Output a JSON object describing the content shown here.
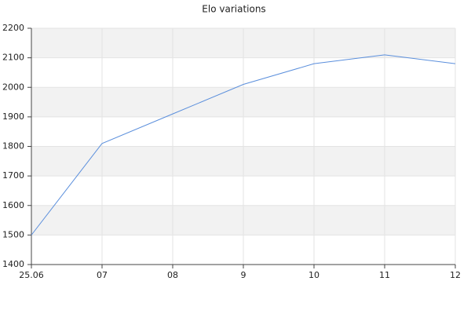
{
  "chart_data": {
    "type": "line",
    "title": "Elo variations",
    "categories": [
      "25.06",
      "07",
      "08",
      "9",
      "10",
      "11",
      "12"
    ],
    "values": [
      1500,
      1810,
      1910,
      2010,
      2080,
      2110,
      2080
    ],
    "color": "#5b8fdc",
    "ylim": [
      1400,
      2200
    ],
    "yticks": [
      1400,
      1500,
      1600,
      1700,
      1800,
      1900,
      2000,
      2100,
      2200
    ],
    "grid": true,
    "band_color": "#f2f2f2"
  }
}
